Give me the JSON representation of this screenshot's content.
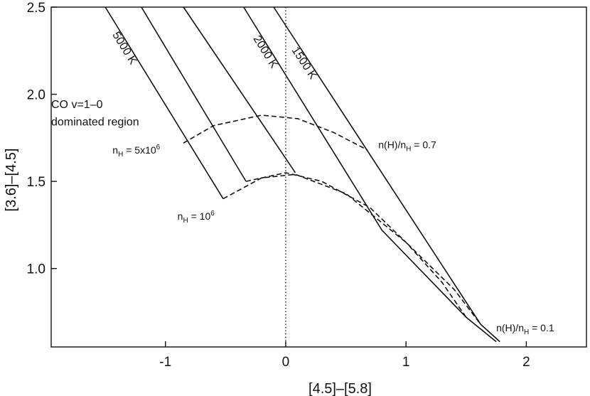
{
  "chart_data": {
    "type": "line",
    "xlabel": "[4.5]–[5.8]",
    "ylabel": "[3.6]–[4.5]",
    "xlim": [
      -1.95,
      2.5
    ],
    "ylim": [
      0.55,
      2.5
    ],
    "x_ticks": [
      "-1",
      "0",
      "1",
      "2"
    ],
    "x_tick_values": [
      -1,
      0,
      1,
      2
    ],
    "y_ticks": [
      "1.0",
      "1.5",
      "2.0",
      "2.5"
    ],
    "y_tick_values": [
      1.0,
      1.5,
      2.0,
      2.5
    ],
    "zero_line_x": 0,
    "series": [
      {
        "name": "5000 K",
        "style": "solid",
        "x": [
          -1.5,
          -0.52
        ],
        "y": [
          2.5,
          1.4
        ]
      },
      {
        "name": "",
        "style": "solid",
        "x": [
          -1.2,
          -0.33
        ],
        "y": [
          2.5,
          1.5
        ]
      },
      {
        "name": "",
        "style": "solid",
        "x": [
          -0.85,
          0.08
        ],
        "y": [
          2.5,
          1.55
        ]
      },
      {
        "name": "2000 K",
        "style": "solid",
        "x": [
          -0.35,
          0.8,
          1.5,
          1.75
        ],
        "y": [
          2.5,
          1.22,
          0.72,
          0.58
        ]
      },
      {
        "name": "1500 K",
        "style": "solid",
        "x": [
          -0.1,
          1.62,
          1.78
        ],
        "y": [
          2.5,
          0.68,
          0.58
        ]
      },
      {
        "name": "",
        "style": "dashed",
        "x": [
          -0.52,
          -0.2,
          0.08,
          0.5,
          1.0,
          1.4,
          1.62
        ],
        "y": [
          1.4,
          1.52,
          1.54,
          1.43,
          1.15,
          0.88,
          0.68
        ]
      },
      {
        "name": "",
        "style": "dashed",
        "x": [
          -0.33,
          0.0,
          0.3,
          0.7,
          1.0,
          1.3,
          1.5
        ],
        "y": [
          1.5,
          1.55,
          1.5,
          1.35,
          1.15,
          0.92,
          0.72
        ]
      },
      {
        "name": "",
        "style": "dashed",
        "x": [
          -0.85,
          -0.6,
          -0.2,
          0.1,
          0.4,
          0.68
        ],
        "y": [
          1.72,
          1.82,
          1.88,
          1.86,
          1.78,
          1.68
        ]
      }
    ],
    "annotations": [
      {
        "text": "CO v=1–0",
        "x": -1.95,
        "y": 1.92
      },
      {
        "text": "dominated region",
        "x": -1.95,
        "y": 1.82
      },
      {
        "text": "n",
        "sub": "H",
        "rest": " = 5x10",
        "sup": "6",
        "x": -1.44,
        "y": 1.66
      },
      {
        "text": "n",
        "sub": "H",
        "rest": " = 10",
        "sup": "6",
        "x": -0.9,
        "y": 1.28
      },
      {
        "text": "n(H)/n",
        "sub": "H",
        "rest": " = 0.7",
        "x": 0.77,
        "y": 1.69
      },
      {
        "text": "n(H)/n",
        "sub": "H",
        "rest": " = 0.1",
        "x": 1.75,
        "y": 0.64
      }
    ]
  }
}
